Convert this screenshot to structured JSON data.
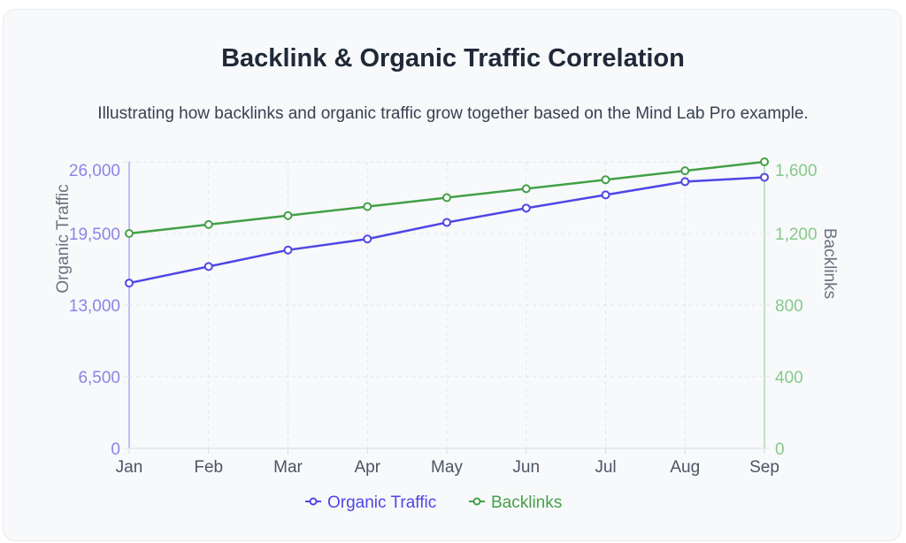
{
  "chart_data": {
    "type": "line",
    "title": "Backlink & Organic Traffic Correlation",
    "subtitle": "Illustrating how backlinks and organic traffic grow together based on the Mind Lab Pro example.",
    "categories": [
      "Jan",
      "Feb",
      "Mar",
      "Apr",
      "May",
      "Jun",
      "Jul",
      "Aug",
      "Sep"
    ],
    "series": [
      {
        "name": "Organic Traffic",
        "axis": "left",
        "color": "#4f46e5",
        "values": [
          15000,
          16500,
          18000,
          19000,
          20500,
          21800,
          23000,
          24200,
          24600
        ]
      },
      {
        "name": "Backlinks",
        "axis": "right",
        "color": "#43a047",
        "values": [
          1200,
          1250,
          1300,
          1350,
          1400,
          1450,
          1500,
          1550,
          1600
        ]
      }
    ],
    "y_left": {
      "label": "Organic Traffic",
      "range": [
        0,
        26000
      ],
      "ticks": [
        0,
        6500,
        13000,
        19500,
        26000
      ],
      "tick_labels": [
        "0",
        "6,500",
        "13,000",
        "19,500",
        "26,000"
      ],
      "color": "#8b84e6"
    },
    "y_right": {
      "label": "Backlinks",
      "range": [
        0,
        1600
      ],
      "ticks": [
        0,
        400,
        800,
        1200,
        1600
      ],
      "tick_labels": [
        "0",
        "400",
        "800",
        "1,200",
        "1,600"
      ],
      "color": "#86c98a"
    },
    "grid": true,
    "legend": "bottom"
  }
}
